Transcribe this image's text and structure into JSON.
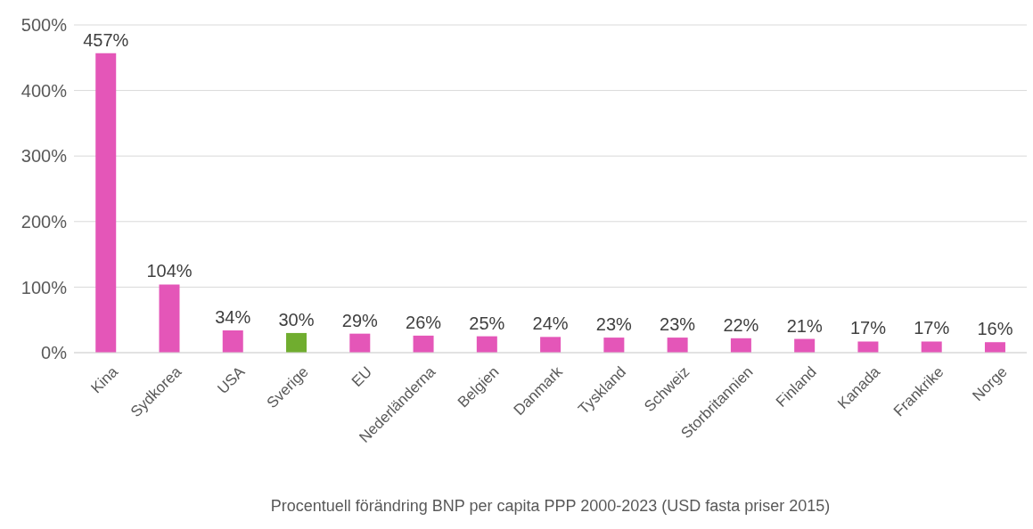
{
  "chart_data": {
    "type": "bar",
    "xlabel": "Procentuell förändring BNP per capita PPP 2000-2023 (USD fasta priser 2015)",
    "categories": [
      "Kina",
      "Sydkorea",
      "USA",
      "Sverige",
      "EU",
      "Nederländerna",
      "Belgien",
      "Danmark",
      "Tyskland",
      "Schweiz",
      "Storbritannien",
      "Finland",
      "Kanada",
      "Frankrike",
      "Norge"
    ],
    "values": [
      457,
      104,
      34,
      30,
      29,
      26,
      25,
      24,
      23,
      23,
      22,
      21,
      17,
      17,
      16
    ],
    "value_labels": [
      "457%",
      "104%",
      "34%",
      "30%",
      "29%",
      "26%",
      "25%",
      "24%",
      "23%",
      "23%",
      "22%",
      "21%",
      "17%",
      "17%",
      "16%"
    ],
    "colors": [
      "#e456b8",
      "#e456b8",
      "#e456b8",
      "#70ad2f",
      "#e456b8",
      "#e456b8",
      "#e456b8",
      "#e456b8",
      "#e456b8",
      "#e456b8",
      "#e456b8",
      "#e456b8",
      "#e456b8",
      "#e456b8",
      "#e456b8"
    ],
    "ylim": [
      0,
      500
    ],
    "yticks": [
      {
        "value": 0,
        "label": "0%"
      },
      {
        "value": 100,
        "label": "100%"
      },
      {
        "value": 200,
        "label": "200%"
      },
      {
        "value": 300,
        "label": "300%"
      },
      {
        "value": 400,
        "label": "400%"
      },
      {
        "value": 500,
        "label": "500%"
      }
    ],
    "grid": "y"
  }
}
